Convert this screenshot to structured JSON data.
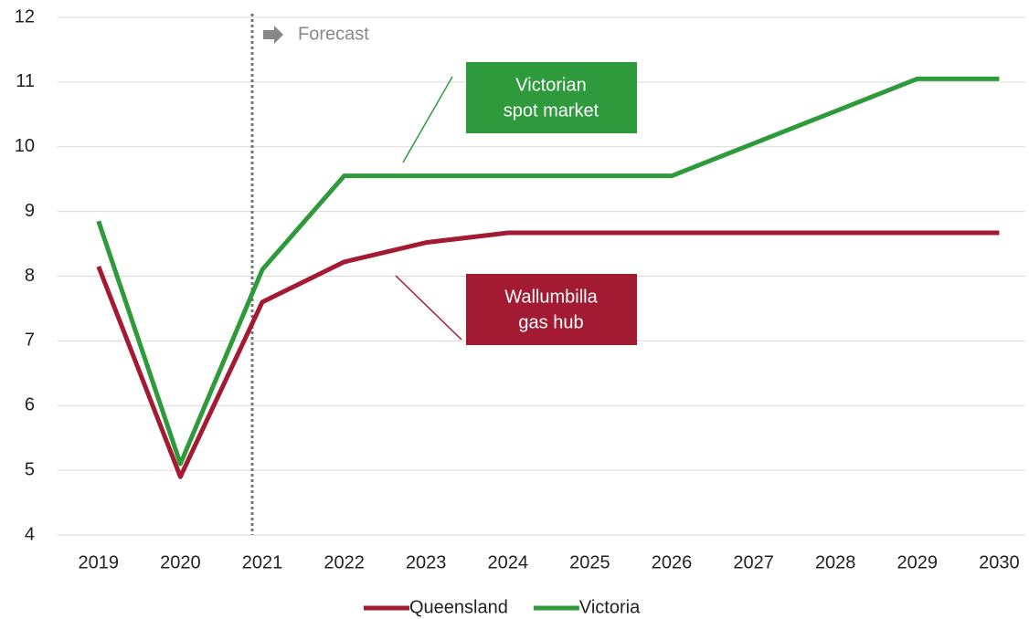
{
  "chart_data": {
    "type": "line",
    "categories": [
      "2019",
      "2020",
      "2021",
      "2022",
      "2023",
      "2024",
      "2025",
      "2026",
      "2027",
      "2028",
      "2029",
      "2030"
    ],
    "series": [
      {
        "name": "Queensland",
        "color": "#a31b32",
        "values": [
          8.15,
          4.9,
          7.6,
          8.22,
          8.52,
          8.67,
          8.67,
          8.67,
          8.67,
          8.67,
          8.67,
          8.67
        ]
      },
      {
        "name": "Victoria",
        "color": "#2e9a3c",
        "values": [
          8.85,
          5.1,
          8.1,
          9.55,
          9.55,
          9.55,
          9.55,
          9.55,
          10.05,
          10.55,
          11.05,
          11.05
        ]
      }
    ],
    "ylim": [
      4,
      12
    ],
    "yticks": [
      4,
      5,
      6,
      7,
      8,
      9,
      10,
      11,
      12
    ],
    "grid": true,
    "forecast_label": "Forecast",
    "annotations": [
      {
        "text": [
          "Victorian",
          "spot market"
        ],
        "color": "#2e9a3c"
      },
      {
        "text": [
          "Wallumbilla",
          "gas hub"
        ],
        "color": "#a31b32"
      }
    ],
    "legend": "bottom"
  }
}
